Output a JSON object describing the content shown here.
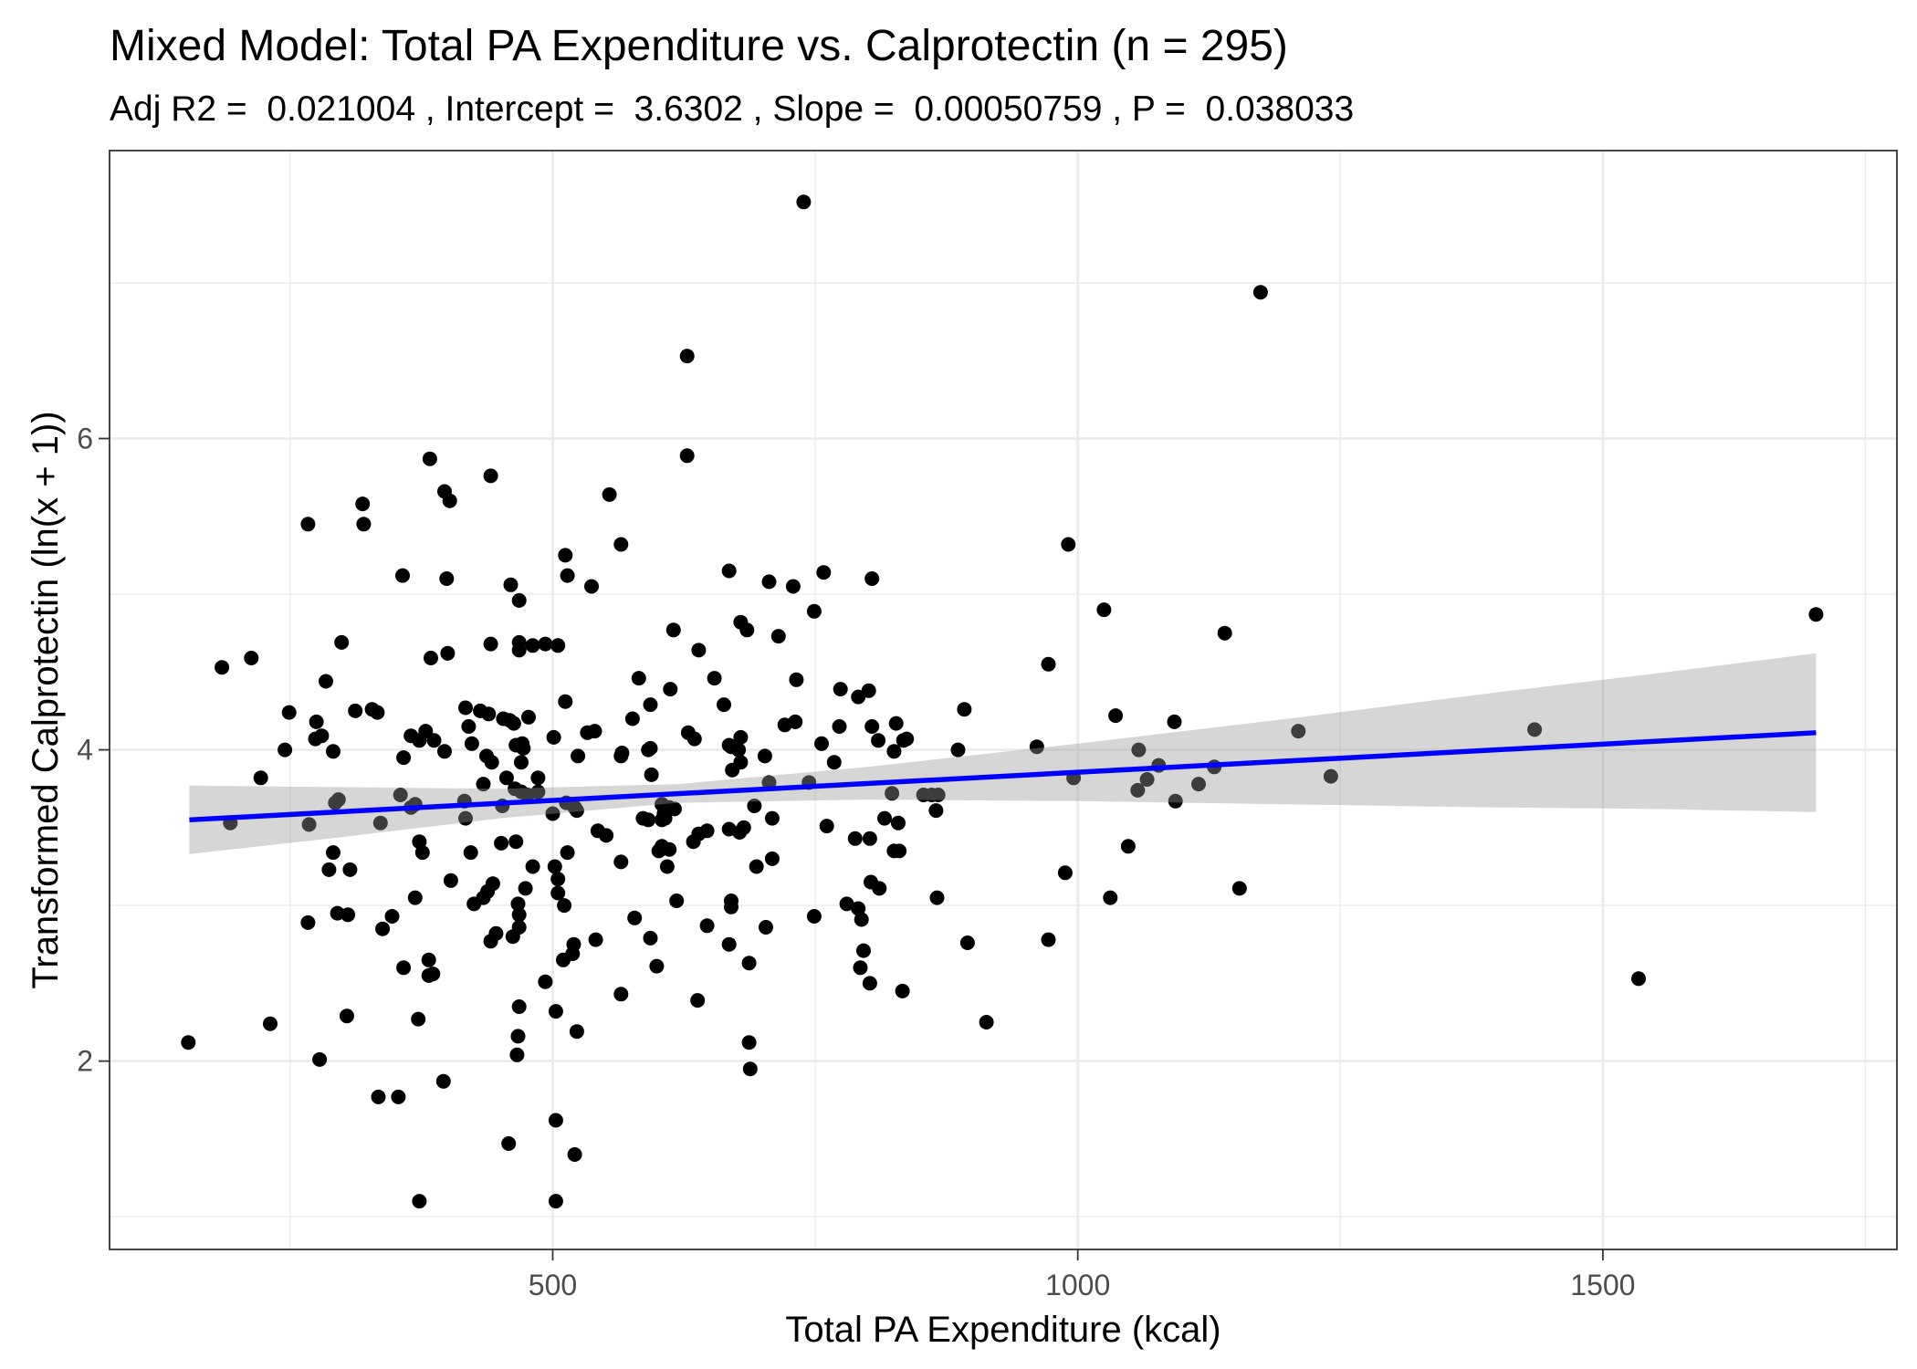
{
  "chart_data": {
    "type": "scatter",
    "title": "Mixed Model: Total PA Expenditure vs. Calprotectin (n = 295)",
    "subtitle": "Adj R2 =  0.021004 , Intercept =  3.6302 , Slope =  0.00050759 , P =  0.038033",
    "xlabel": "Total PA Expenditure (kcal)",
    "ylabel": "Transformed Calprotectin (ln(x + 1))",
    "xlim": [
      78,
      1780
    ],
    "ylim": [
      0.79,
      7.85
    ],
    "xticks": [
      500,
      1000,
      1500
    ],
    "xtick_labels": [
      "500",
      "1000",
      "1500"
    ],
    "xticks_minor": [
      250,
      750,
      1250,
      1750
    ],
    "yticks": [
      2,
      4,
      6
    ],
    "ytick_labels": [
      "2",
      "4",
      "6"
    ],
    "yticks_minor": [
      1,
      3,
      5,
      7
    ],
    "grid": true,
    "colors": {
      "points": "#000000",
      "fit_line": "#0000FF",
      "confidence_band": "#999999",
      "grid": "#EBEBEB",
      "panel_border": "#333333",
      "tick_label": "#4D4D4D",
      "background": "#FFFFFF"
    },
    "points": [
      [
        739,
        7.52
      ],
      [
        1174,
        6.94
      ],
      [
        628,
        6.53
      ],
      [
        628,
        5.89
      ],
      [
        383,
        5.87
      ],
      [
        441,
        5.76
      ],
      [
        397,
        5.66
      ],
      [
        402,
        5.6
      ],
      [
        319,
        5.58
      ],
      [
        554,
        5.64
      ],
      [
        267,
        5.45
      ],
      [
        320,
        5.45
      ],
      [
        991,
        5.32
      ],
      [
        565,
        5.32
      ],
      [
        512,
        5.25
      ],
      [
        357,
        5.12
      ],
      [
        399,
        5.1
      ],
      [
        514,
        5.12
      ],
      [
        668,
        5.15
      ],
      [
        758,
        5.14
      ],
      [
        804,
        5.1
      ],
      [
        706,
        5.08
      ],
      [
        729,
        5.05
      ],
      [
        537,
        5.05
      ],
      [
        460,
        5.06
      ],
      [
        468,
        4.96
      ],
      [
        749,
        4.89
      ],
      [
        1025,
        4.9
      ],
      [
        1703,
        4.87
      ],
      [
        679,
        4.82
      ],
      [
        685,
        4.77
      ],
      [
        615,
        4.77
      ],
      [
        1140,
        4.75
      ],
      [
        715,
        4.73
      ],
      [
        299,
        4.69
      ],
      [
        441,
        4.68
      ],
      [
        468,
        4.69
      ],
      [
        493,
        4.68
      ],
      [
        505,
        4.67
      ],
      [
        481,
        4.67
      ],
      [
        468,
        4.64
      ],
      [
        639,
        4.64
      ],
      [
        400,
        4.62
      ],
      [
        384,
        4.59
      ],
      [
        213,
        4.59
      ],
      [
        185,
        4.53
      ],
      [
        972,
        4.55
      ],
      [
        582,
        4.46
      ],
      [
        654,
        4.46
      ],
      [
        732,
        4.45
      ],
      [
        284,
        4.44
      ],
      [
        612,
        4.39
      ],
      [
        774,
        4.39
      ],
      [
        801,
        4.38
      ],
      [
        791,
        4.34
      ],
      [
        663,
        4.29
      ],
      [
        892,
        4.26
      ],
      [
        593,
        4.29
      ],
      [
        328,
        4.26
      ],
      [
        333,
        4.24
      ],
      [
        312,
        4.25
      ],
      [
        249,
        4.24
      ],
      [
        512,
        4.31
      ],
      [
        417,
        4.27
      ],
      [
        431,
        4.25
      ],
      [
        439,
        4.23
      ],
      [
        453,
        4.2
      ],
      [
        477,
        4.21
      ],
      [
        576,
        4.2
      ],
      [
        731,
        4.18
      ],
      [
        721,
        4.16
      ],
      [
        1036,
        4.22
      ],
      [
        1092,
        4.18
      ],
      [
        1210,
        4.12
      ],
      [
        1435,
        4.13
      ],
      [
        804,
        4.15
      ],
      [
        827,
        4.17
      ],
      [
        275,
        4.18
      ],
      [
        420,
        4.15
      ],
      [
        459,
        4.19
      ],
      [
        463,
        4.17
      ],
      [
        540,
        4.12
      ],
      [
        533,
        4.11
      ],
      [
        629,
        4.11
      ],
      [
        635,
        4.07
      ],
      [
        679,
        4.08
      ],
      [
        773,
        4.15
      ],
      [
        834,
        4.06
      ],
      [
        837,
        4.07
      ],
      [
        810,
        4.06
      ],
      [
        501,
        4.08
      ],
      [
        274,
        4.07
      ],
      [
        280,
        4.09
      ],
      [
        365,
        4.09
      ],
      [
        379,
        4.12
      ],
      [
        373,
        4.06
      ],
      [
        387,
        4.06
      ],
      [
        423,
        4.04
      ],
      [
        471,
        4.04
      ],
      [
        465,
        4.03
      ],
      [
        472,
        4.01
      ],
      [
        756,
        4.04
      ],
      [
        668,
        4.03
      ],
      [
        591,
        4.0
      ],
      [
        593,
        4.01
      ],
      [
        677,
        4.0
      ],
      [
        670,
        4.02
      ],
      [
        886,
        4.0
      ],
      [
        961,
        4.02
      ],
      [
        245,
        4.0
      ],
      [
        291,
        3.99
      ],
      [
        397,
        3.99
      ],
      [
        437,
        3.96
      ],
      [
        566,
        3.98
      ],
      [
        565,
        3.96
      ],
      [
        524,
        3.96
      ],
      [
        702,
        3.96
      ],
      [
        679,
        3.92
      ],
      [
        768,
        3.92
      ],
      [
        825,
        3.99
      ],
      [
        1058,
        4.0
      ],
      [
        358,
        3.95
      ],
      [
        470,
        3.92
      ],
      [
        442,
        3.92
      ],
      [
        594,
        3.84
      ],
      [
        671,
        3.87
      ],
      [
        456,
        3.82
      ],
      [
        486,
        3.82
      ],
      [
        222,
        3.82
      ],
      [
        744,
        3.79
      ],
      [
        706,
        3.79
      ],
      [
        996,
        3.82
      ],
      [
        1241,
        3.83
      ],
      [
        1066,
        3.81
      ],
      [
        1115,
        3.78
      ],
      [
        1130,
        3.89
      ],
      [
        1077,
        3.9
      ],
      [
        823,
        3.72
      ],
      [
        853,
        3.71
      ],
      [
        861,
        3.71
      ],
      [
        867,
        3.71
      ],
      [
        1057,
        3.74
      ],
      [
        1093,
        3.67
      ],
      [
        355,
        3.71
      ],
      [
        434,
        3.78
      ],
      [
        464,
        3.75
      ],
      [
        470,
        3.73
      ],
      [
        476,
        3.71
      ],
      [
        486,
        3.73
      ],
      [
        365,
        3.63
      ],
      [
        369,
        3.65
      ],
      [
        416,
        3.67
      ],
      [
        452,
        3.64
      ],
      [
        293,
        3.66
      ],
      [
        296,
        3.68
      ],
      [
        513,
        3.66
      ],
      [
        521,
        3.63
      ],
      [
        500,
        3.59
      ],
      [
        523,
        3.61
      ],
      [
        604,
        3.65
      ],
      [
        611,
        3.63
      ],
      [
        616,
        3.62
      ],
      [
        607,
        3.56
      ],
      [
        606,
        3.59
      ],
      [
        692,
        3.64
      ],
      [
        709,
        3.56
      ],
      [
        586,
        3.56
      ],
      [
        591,
        3.55
      ],
      [
        604,
        3.55
      ],
      [
        336,
        3.53
      ],
      [
        417,
        3.56
      ],
      [
        193,
        3.53
      ],
      [
        268,
        3.52
      ],
      [
        761,
        3.51
      ],
      [
        668,
        3.49
      ],
      [
        682,
        3.5
      ],
      [
        639,
        3.46
      ],
      [
        647,
        3.48
      ],
      [
        543,
        3.48
      ],
      [
        551,
        3.45
      ],
      [
        678,
        3.47
      ],
      [
        829,
        3.53
      ],
      [
        816,
        3.56
      ],
      [
        865,
        3.61
      ],
      [
        373,
        3.41
      ],
      [
        451,
        3.4
      ],
      [
        465,
        3.41
      ],
      [
        634,
        3.41
      ],
      [
        788,
        3.43
      ],
      [
        802,
        3.43
      ],
      [
        1048,
        3.38
      ],
      [
        291,
        3.34
      ],
      [
        376,
        3.34
      ],
      [
        422,
        3.34
      ],
      [
        514,
        3.34
      ],
      [
        604,
        3.38
      ],
      [
        611,
        3.36
      ],
      [
        601,
        3.35
      ],
      [
        825,
        3.35
      ],
      [
        830,
        3.35
      ],
      [
        565,
        3.28
      ],
      [
        709,
        3.3
      ],
      [
        609,
        3.25
      ],
      [
        481,
        3.25
      ],
      [
        502,
        3.25
      ],
      [
        287,
        3.23
      ],
      [
        307,
        3.23
      ],
      [
        694,
        3.25
      ],
      [
        988,
        3.21
      ],
      [
        505,
        3.17
      ],
      [
        403,
        3.16
      ],
      [
        443,
        3.14
      ],
      [
        803,
        3.15
      ],
      [
        811,
        3.11
      ],
      [
        1154,
        3.11
      ],
      [
        474,
        3.11
      ],
      [
        505,
        3.08
      ],
      [
        438,
        3.09
      ],
      [
        434,
        3.05
      ],
      [
        1031,
        3.05
      ],
      [
        866,
        3.05
      ],
      [
        511,
        3.0
      ],
      [
        425,
        3.01
      ],
      [
        467,
        3.01
      ],
      [
        670,
        3.03
      ],
      [
        618,
        3.03
      ],
      [
        780,
        3.01
      ],
      [
        670,
        2.99
      ],
      [
        369,
        3.05
      ],
      [
        791,
        2.98
      ],
      [
        468,
        2.94
      ],
      [
        295,
        2.95
      ],
      [
        305,
        2.94
      ],
      [
        749,
        2.93
      ],
      [
        347,
        2.93
      ],
      [
        794,
        2.91
      ],
      [
        578,
        2.92
      ],
      [
        267,
        2.89
      ],
      [
        338,
        2.85
      ],
      [
        468,
        2.86
      ],
      [
        647,
        2.87
      ],
      [
        703,
        2.86
      ],
      [
        446,
        2.82
      ],
      [
        441,
        2.77
      ],
      [
        462,
        2.8
      ],
      [
        593,
        2.79
      ],
      [
        541,
        2.78
      ],
      [
        972,
        2.78
      ],
      [
        895,
        2.76
      ],
      [
        520,
        2.75
      ],
      [
        668,
        2.75
      ],
      [
        796,
        2.71
      ],
      [
        519,
        2.69
      ],
      [
        382,
        2.65
      ],
      [
        510,
        2.65
      ],
      [
        687,
        2.63
      ],
      [
        599,
        2.61
      ],
      [
        793,
        2.6
      ],
      [
        358,
        2.6
      ],
      [
        386,
        2.56
      ],
      [
        382,
        2.55
      ],
      [
        1534,
        2.53
      ],
      [
        493,
        2.51
      ],
      [
        802,
        2.5
      ],
      [
        833,
        2.45
      ],
      [
        565,
        2.43
      ],
      [
        638,
        2.39
      ],
      [
        468,
        2.35
      ],
      [
        503,
        2.32
      ],
      [
        304,
        2.29
      ],
      [
        372,
        2.27
      ],
      [
        913,
        2.25
      ],
      [
        231,
        2.24
      ],
      [
        523,
        2.19
      ],
      [
        467,
        2.16
      ],
      [
        687,
        2.12
      ],
      [
        153,
        2.12
      ],
      [
        466,
        2.04
      ],
      [
        278,
        2.01
      ],
      [
        688,
        1.95
      ],
      [
        396,
        1.87
      ],
      [
        334,
        1.77
      ],
      [
        353,
        1.77
      ],
      [
        503,
        1.62
      ],
      [
        458,
        1.47
      ],
      [
        521,
        1.4
      ],
      [
        373,
        1.1
      ],
      [
        503,
        1.1
      ]
    ],
    "fit_line": {
      "x": [
        154,
        1703
      ],
      "y": [
        3.55,
        4.11
      ]
    },
    "confidence_band": {
      "x": [
        154,
        300,
        450,
        620,
        800,
        1000,
        1200,
        1400,
        1550,
        1703
      ],
      "lower": [
        3.33,
        3.44,
        3.56,
        3.66,
        3.68,
        3.67,
        3.65,
        3.63,
        3.62,
        3.6
      ],
      "upper": [
        3.77,
        3.76,
        3.75,
        3.78,
        3.89,
        4.04,
        4.2,
        4.37,
        4.49,
        4.62
      ]
    }
  }
}
